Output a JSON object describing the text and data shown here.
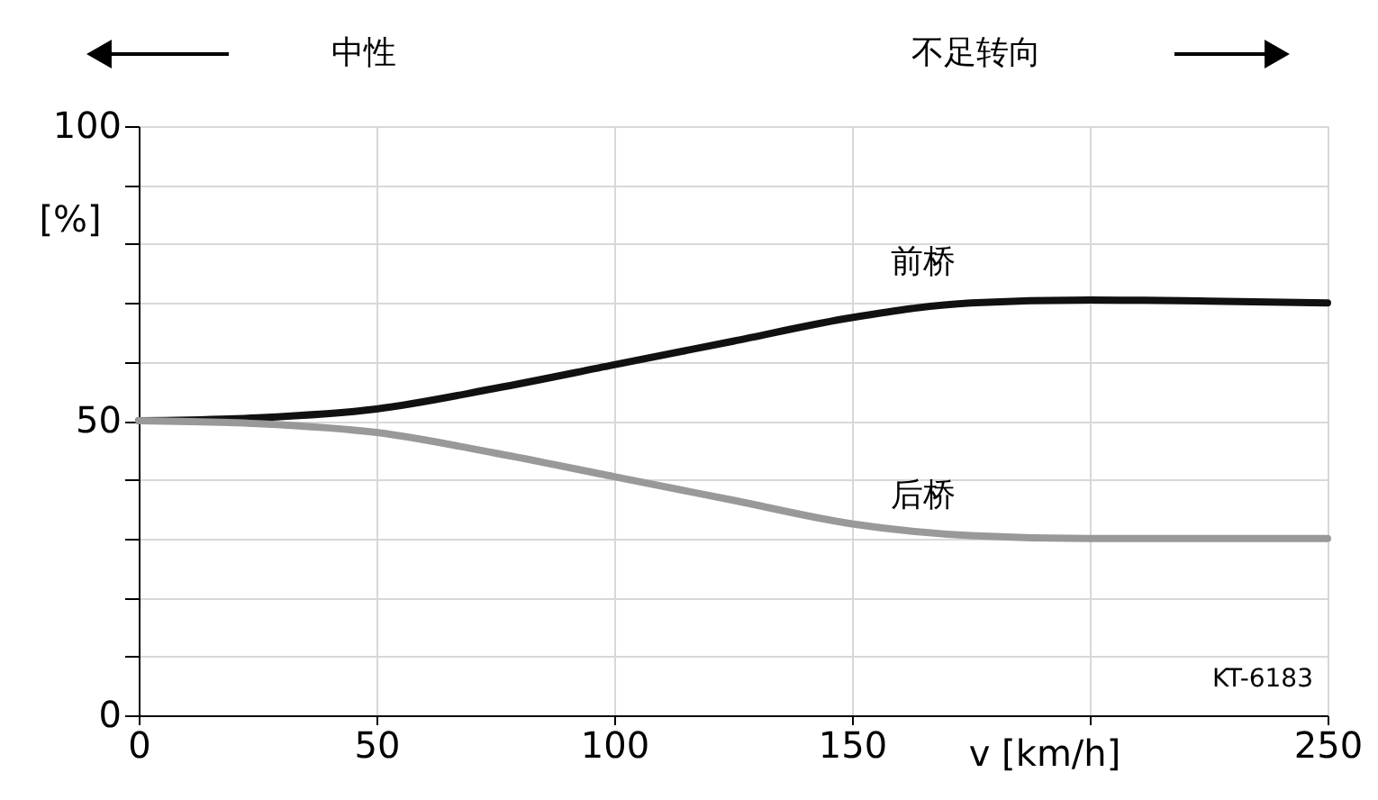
{
  "chart_data": {
    "type": "line",
    "x": [
      0,
      25,
      50,
      75,
      100,
      125,
      150,
      175,
      200,
      225,
      250
    ],
    "series": [
      {
        "name": "前桥",
        "color": "#111111",
        "values": [
          50,
          50.5,
          52,
          55.5,
          59.5,
          63.5,
          67.5,
          70,
          70.5,
          70.3,
          70
        ]
      },
      {
        "name": "后桥",
        "color": "#999999",
        "values": [
          50,
          49.5,
          48,
          44.5,
          40.5,
          36.5,
          32.5,
          30.5,
          30,
          30,
          30
        ]
      }
    ],
    "xlim": [
      0,
      250
    ],
    "ylim": [
      0,
      100
    ],
    "xticks": [
      0,
      50,
      100,
      150,
      {
        "value": 200,
        "label": null
      },
      250
    ],
    "yticks": [
      0,
      {
        "value": 10,
        "label": null
      },
      {
        "value": 20,
        "label": null
      },
      {
        "value": 30,
        "label": null
      },
      {
        "value": 40,
        "label": null
      },
      50,
      {
        "value": 60,
        "label": null
      },
      {
        "value": 70,
        "label": null
      },
      {
        "value": 80,
        "label": null
      },
      {
        "value": 90,
        "label": null
      },
      100
    ],
    "xlabel": "v [km/h]",
    "ylabel": "[%]",
    "grid": true,
    "legend": false,
    "line_style": "solid",
    "marker": "none",
    "annotations": [
      "中性",
      "不足转向",
      "KT-6183"
    ]
  }
}
